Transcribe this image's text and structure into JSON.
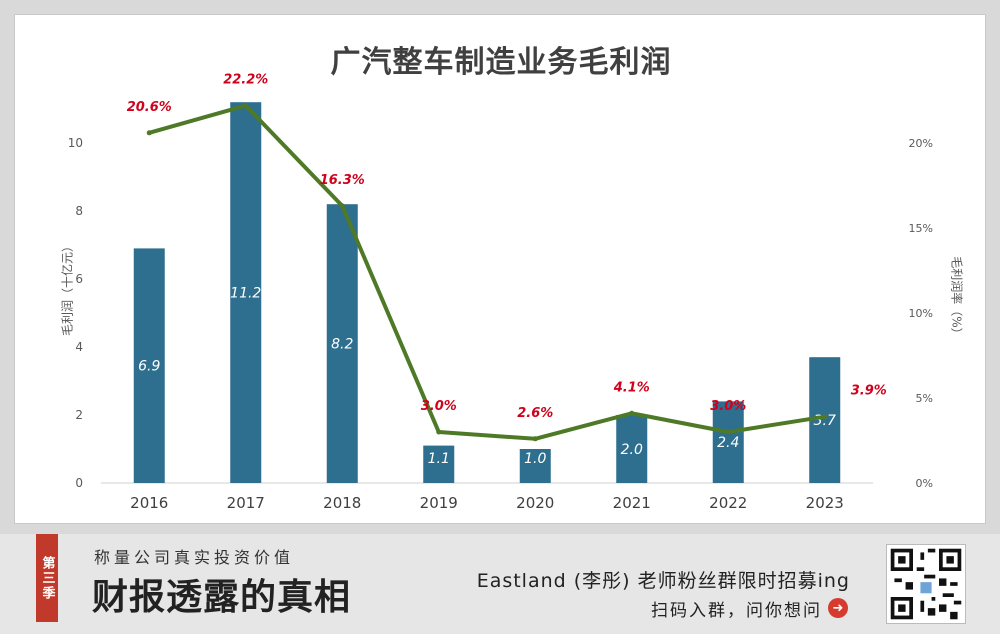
{
  "chart_data": {
    "type": "bar+line",
    "title": "广汽整车制造业务毛利润",
    "categories": [
      "2016",
      "2017",
      "2018",
      "2019",
      "2020",
      "2021",
      "2022",
      "2023"
    ],
    "series": [
      {
        "name": "毛利润（十亿元）",
        "kind": "bar",
        "axis": "left",
        "values": [
          6.9,
          11.2,
          8.2,
          1.1,
          1.0,
          2.0,
          2.4,
          3.7
        ],
        "labels": [
          "6.9",
          "11.2",
          "8.2",
          "1.1",
          "1.0",
          "2.0",
          "2.4",
          "3.7"
        ],
        "color": "#2e6e8e"
      },
      {
        "name": "毛利润率（%）",
        "kind": "line",
        "axis": "right",
        "values": [
          20.6,
          22.2,
          16.3,
          3.0,
          2.6,
          4.1,
          3.0,
          3.9
        ],
        "labels": [
          "20.6%",
          "22.2%",
          "16.3%",
          "3.0%",
          "2.6%",
          "4.1%",
          "3.0%",
          "3.9%"
        ],
        "color": "#4e7a27",
        "label_color": "#d0021b"
      }
    ],
    "ylabel": "毛利润（十亿元）",
    "ylabel_right": "毛利润率（%）",
    "ylim": [
      0,
      12
    ],
    "y_ticks": [
      "0",
      "2",
      "4",
      "6",
      "8",
      "10"
    ],
    "ylim_right": [
      0,
      24
    ],
    "y_ticks_right": [
      "0%",
      "5%",
      "10%",
      "15%",
      "20%"
    ],
    "grid": false,
    "legend": "none"
  },
  "banner": {
    "season": "第三季",
    "slogan": "称量公司真实投资价值",
    "brand": "财报透露的真相",
    "promo": "Eastland (李彤) 老师粉丝群限时招募ing",
    "scan": "扫码入群，问你想问"
  }
}
